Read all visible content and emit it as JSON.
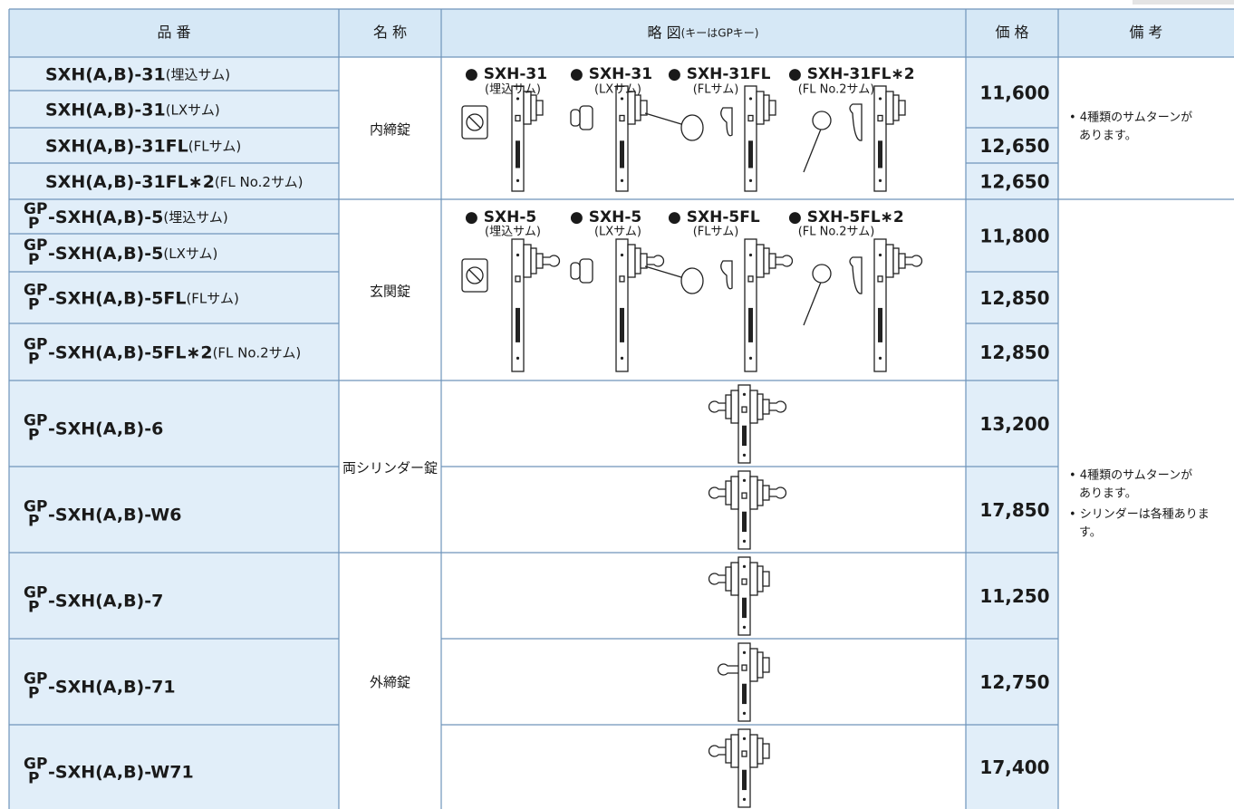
{
  "header": {
    "code": "品 番",
    "name": "名 称",
    "diagram": "略 図",
    "diagram_note": "(キーはGPキー)",
    "price": "価 格",
    "remarks": "備 考"
  },
  "rows": [
    {
      "model": "SXH(A,B)-31",
      "note": "(埋込サム)"
    },
    {
      "model": "SXH(A,B)-31",
      "note": "(LXサム)"
    },
    {
      "model": "SXH(A,B)-31FL",
      "note": "(FLサム)"
    },
    {
      "model": "SXH(A,B)-31FL∗2",
      "note": "(FL No.2サム)"
    },
    {
      "gp": "GP",
      "p": "P",
      "model": "-SXH(A,B)-5",
      "note": "(埋込サム)"
    },
    {
      "gp": "GP",
      "p": "P",
      "model": "-SXH(A,B)-5",
      "note": "(LXサム)"
    },
    {
      "gp": "GP",
      "p": "P",
      "model": "-SXH(A,B)-5FL",
      "note": "(FLサム)"
    },
    {
      "gp": "GP",
      "p": "P",
      "model": "-SXH(A,B)-5FL∗2",
      "note": "(FL No.2サム)"
    },
    {
      "gp": "GP",
      "p": "P",
      "model": "-SXH(A,B)-6"
    },
    {
      "gp": "GP",
      "p": "P",
      "model": "-SXH(A,B)-W6"
    },
    {
      "gp": "GP",
      "p": "P",
      "model": "-SXH(A,B)-7"
    },
    {
      "gp": "GP",
      "p": "P",
      "model": "-SXH(A,B)-71"
    },
    {
      "gp": "GP",
      "p": "P",
      "model": "-SXH(A,B)-W71"
    }
  ],
  "groups": [
    "内締錠",
    "玄関錠",
    "両シリンダー錠",
    "外締錠"
  ],
  "diagram_sets": [
    [
      {
        "label": "● SXH-31",
        "note": "(埋込サム)"
      },
      {
        "label": "● SXH-31",
        "note": "(LXサム)"
      },
      {
        "label": "● SXH-31FL",
        "note": "(FLサム)"
      },
      {
        "label": "● SXH-31FL∗2",
        "note": "(FL No.2サム)"
      }
    ],
    [
      {
        "label": "● SXH-5",
        "note": "(埋込サム)"
      },
      {
        "label": "● SXH-5",
        "note": "(LXサム)"
      },
      {
        "label": "● SXH-5FL",
        "note": "(FLサム)"
      },
      {
        "label": "● SXH-5FL∗2",
        "note": "(FL No.2サム)"
      }
    ]
  ],
  "prices": [
    "11,600",
    "12,650",
    "12,650",
    "11,800",
    "12,850",
    "12,850",
    "13,200",
    "17,850",
    "11,250",
    "12,750",
    "17,400"
  ],
  "remarks": [
    [
      [
        "• 4種類のサムターンが",
        "あります。"
      ]
    ],
    [
      [
        "• 4種類のサムターンが",
        "あります。"
      ],
      [
        "• シリンダーは各種ありま",
        "す。"
      ]
    ]
  ]
}
